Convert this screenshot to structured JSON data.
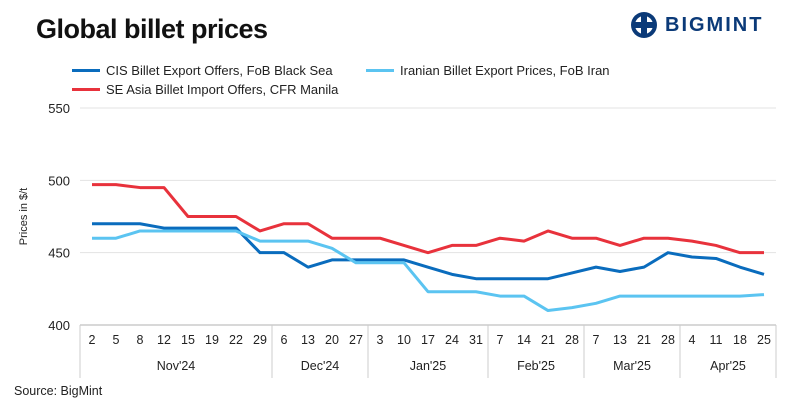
{
  "title": "Global billet prices",
  "logo": "BIGMINT",
  "source": "Source: BigMint",
  "chart_data": {
    "type": "line",
    "title": "Global billet prices",
    "ylabel": "Prices in $/t",
    "ylim": [
      400,
      550
    ],
    "yticks": [
      400,
      450,
      500,
      550
    ],
    "grid": true,
    "legend": "top-left",
    "categories": [
      "2",
      "5",
      "8",
      "12",
      "15",
      "19",
      "22",
      "29",
      "6",
      "13",
      "20",
      "27",
      "3",
      "10",
      "17",
      "24",
      "31",
      "7",
      "14",
      "21",
      "28",
      "7",
      "13",
      "21",
      "28",
      "4",
      "11",
      "18",
      "25"
    ],
    "groups": [
      {
        "label": "Nov'24",
        "count": 8
      },
      {
        "label": "Dec'24",
        "count": 4
      },
      {
        "label": "Jan'25",
        "count": 5
      },
      {
        "label": "Feb'25",
        "count": 4
      },
      {
        "label": "Mar'25",
        "count": 4
      },
      {
        "label": "Apr'25",
        "count": 4
      }
    ],
    "series": [
      {
        "name": "CIS Billet Export Offers, FoB Black Sea",
        "color": "#0a6cbd",
        "values": [
          470,
          470,
          470,
          467,
          467,
          467,
          467,
          450,
          450,
          440,
          445,
          445,
          445,
          445,
          440,
          435,
          432,
          432,
          432,
          432,
          436,
          440,
          437,
          440,
          450,
          447,
          446,
          440,
          435
        ]
      },
      {
        "name": "Iranian Billet Export Prices, FoB Iran",
        "color": "#5bc4f1",
        "values": [
          460,
          460,
          465,
          465,
          465,
          465,
          465,
          458,
          458,
          458,
          453,
          443,
          443,
          443,
          423,
          423,
          423,
          420,
          420,
          410,
          412,
          415,
          420,
          420,
          420,
          420,
          420,
          420,
          421
        ]
      },
      {
        "name": "SE Asia Billet Import Offers, CFR Manila",
        "color": "#e8323c",
        "values": [
          497,
          497,
          495,
          495,
          475,
          475,
          475,
          465,
          470,
          470,
          460,
          460,
          460,
          455,
          450,
          455,
          455,
          460,
          458,
          465,
          460,
          460,
          455,
          460,
          460,
          458,
          455,
          450,
          450
        ]
      }
    ]
  }
}
